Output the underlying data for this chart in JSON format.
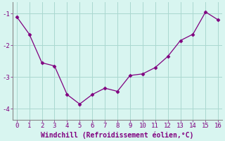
{
  "x": [
    0,
    1,
    2,
    3,
    4,
    5,
    6,
    7,
    8,
    9,
    10,
    11,
    12,
    13,
    14,
    15,
    16
  ],
  "y": [
    -1.1,
    -1.65,
    -2.55,
    -2.65,
    -3.55,
    -3.85,
    -3.55,
    -3.35,
    -3.45,
    -2.95,
    -2.9,
    -2.7,
    -2.35,
    -1.85,
    -1.65,
    -0.95,
    -1.2
  ],
  "line_color": "#800080",
  "marker": "D",
  "marker_color": "#800080",
  "background_color": "#d8f5f0",
  "grid_color": "#aad8d0",
  "xlabel": "Windchill (Refroidissement éolien,°C)",
  "xlabel_color": "#800080",
  "tick_color": "#800080",
  "spine_color": "#888888",
  "ylabel_ticks": [
    -4,
    -3,
    -2,
    -1
  ],
  "xlim": [
    -0.3,
    16.3
  ],
  "ylim": [
    -4.35,
    -0.65
  ],
  "figsize": [
    3.2,
    2.0
  ],
  "dpi": 100
}
